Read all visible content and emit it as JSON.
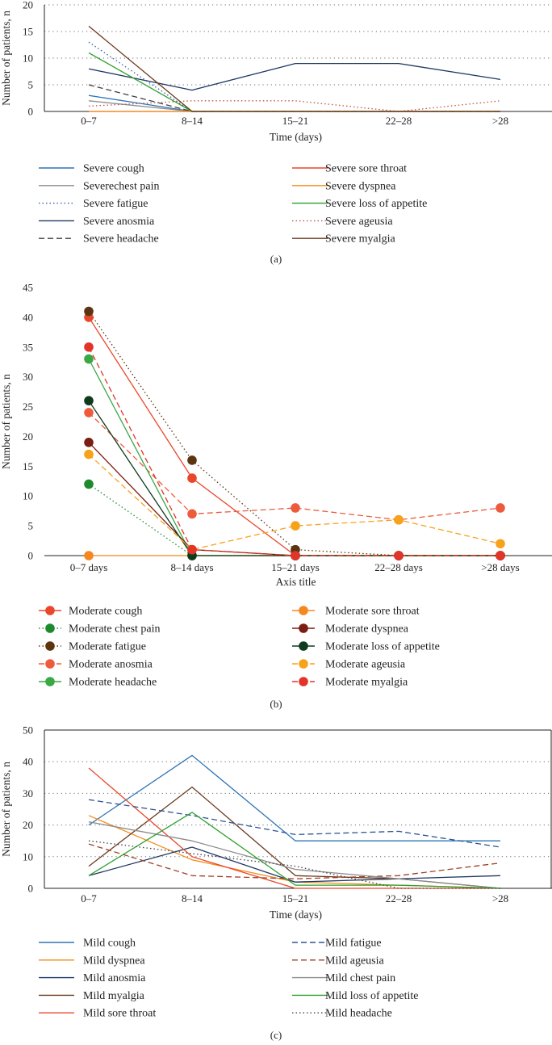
{
  "chart_data": [
    {
      "type": "line",
      "panel_label": "(a)",
      "title": "",
      "xlabel": "Time (days)",
      "ylabel": "Number of patients, n",
      "ylim": [
        0,
        20
      ],
      "yticks": [
        0,
        5,
        10,
        15,
        20
      ],
      "grid": "horizontal dotted",
      "categories": [
        "0–7",
        "8–14",
        "15–21",
        "22–28",
        ">28"
      ],
      "series": [
        {
          "name": "Severe cough",
          "color": "#2e75b6",
          "dash": "solid",
          "marker": "none",
          "values": [
            3,
            0,
            0,
            0,
            0
          ]
        },
        {
          "name": "Severechest pain",
          "color": "#8c8c8c",
          "dash": "solid",
          "marker": "none",
          "values": [
            2,
            0,
            0,
            0,
            0
          ]
        },
        {
          "name": "Severe fatigue",
          "color": "#3b5ea8",
          "dash": "dotted",
          "marker": "none",
          "values": [
            13,
            0,
            0,
            0,
            0
          ]
        },
        {
          "name": "Severe anosmia",
          "color": "#1f3864",
          "dash": "solid",
          "marker": "none",
          "values": [
            8,
            4,
            9,
            9,
            6
          ]
        },
        {
          "name": "Severe headache",
          "color": "#404040",
          "dash": "dashed",
          "marker": "none",
          "values": [
            5,
            0,
            0,
            0,
            0
          ]
        },
        {
          "name": "Severe sore throat",
          "color": "#e8472b",
          "dash": "solid",
          "marker": "none",
          "values": [
            0,
            0,
            0,
            0,
            0
          ]
        },
        {
          "name": "Severe dyspnea",
          "color": "#f28c18",
          "dash": "solid",
          "marker": "none",
          "values": [
            0,
            0,
            0,
            0,
            0
          ]
        },
        {
          "name": "Severe loss of appetite",
          "color": "#2ca02c",
          "dash": "solid",
          "marker": "none",
          "values": [
            11,
            0,
            0,
            0,
            0
          ]
        },
        {
          "name": "Severe ageusia",
          "color": "#c0504d",
          "dash": "dotted",
          "marker": "none",
          "values": [
            1,
            2,
            2,
            0,
            2
          ]
        },
        {
          "name": "Severe myalgia",
          "color": "#6b3a1f",
          "dash": "solid",
          "marker": "none",
          "values": [
            16,
            0,
            0,
            0,
            0
          ]
        }
      ]
    },
    {
      "type": "line",
      "panel_label": "(b)",
      "title": "",
      "xlabel": "Axis title",
      "ylabel": "Number of patients, n",
      "ylim": [
        0,
        45
      ],
      "yticks": [
        0,
        5,
        10,
        15,
        20,
        25,
        30,
        35,
        40,
        45
      ],
      "grid": "none",
      "categories": [
        "0–7 days",
        "8–14 days",
        "15–21 days",
        "22–28 days",
        ">28 days"
      ],
      "series": [
        {
          "name": "Moderate cough",
          "color": "#e8472b",
          "dash": "solid",
          "marker": "circle",
          "values": [
            40,
            13,
            0,
            0,
            0
          ]
        },
        {
          "name": "Moderate chest pain",
          "color": "#1e8a2e",
          "dash": "dotted",
          "marker": "circle",
          "values": [
            12,
            0,
            0,
            0,
            0
          ]
        },
        {
          "name": "Moderate fatigue",
          "color": "#5c3510",
          "dash": "dotted",
          "marker": "circle",
          "values": [
            41,
            16,
            1,
            0,
            0
          ]
        },
        {
          "name": "Moderate anosmia",
          "color": "#ee5a3c",
          "dash": "dashed",
          "marker": "circle",
          "values": [
            24,
            7,
            8,
            6,
            8
          ]
        },
        {
          "name": "Moderate headache",
          "color": "#39a845",
          "dash": "solid",
          "marker": "circle",
          "values": [
            33,
            0,
            0,
            0,
            0
          ]
        },
        {
          "name": "Moderate sore throat",
          "color": "#f5871f",
          "dash": "solid",
          "marker": "circle",
          "values": [
            0,
            0,
            0,
            0,
            0
          ]
        },
        {
          "name": "Moderate dyspnea",
          "color": "#7a1d12",
          "dash": "solid",
          "marker": "circle",
          "values": [
            19,
            1,
            0,
            0,
            0
          ]
        },
        {
          "name": "Moderate loss of appetite",
          "color": "#0e3b1e",
          "dash": "solid",
          "marker": "circle",
          "values": [
            26,
            0,
            0,
            0,
            0
          ]
        },
        {
          "name": "Moderate ageusia",
          "color": "#f7a21b",
          "dash": "dashed",
          "marker": "circle",
          "values": [
            17,
            1,
            5,
            6,
            2
          ]
        },
        {
          "name": "Moderate myalgia",
          "color": "#e3342a",
          "dash": "dashed",
          "marker": "circle",
          "values": [
            35,
            1,
            0,
            0,
            0
          ]
        }
      ]
    },
    {
      "type": "line",
      "panel_label": "(c)",
      "title": "",
      "xlabel": "Time (days)",
      "ylabel": "Number of patients, n",
      "ylim": [
        0,
        50
      ],
      "yticks": [
        0,
        10,
        20,
        30,
        40,
        50
      ],
      "grid": "horizontal dotted",
      "categories": [
        "0–7",
        "8–14",
        "15–21",
        "22–28",
        ">28"
      ],
      "series": [
        {
          "name": "Mild cough",
          "color": "#2e75b6",
          "dash": "solid",
          "marker": "none",
          "values": [
            20,
            42,
            15,
            15,
            15
          ]
        },
        {
          "name": "Mild dyspnea",
          "color": "#f28c18",
          "dash": "solid",
          "marker": "none",
          "values": [
            23,
            9,
            2,
            1,
            0
          ]
        },
        {
          "name": "Mild anosmia",
          "color": "#1f3864",
          "dash": "solid",
          "marker": "none",
          "values": [
            4,
            13,
            2,
            3,
            4
          ]
        },
        {
          "name": "Mild myalgia",
          "color": "#6b3a1f",
          "dash": "solid",
          "marker": "none",
          "values": [
            7,
            32,
            4,
            3,
            0
          ]
        },
        {
          "name": "Mild sore throat",
          "color": "#e8472b",
          "dash": "solid",
          "marker": "none",
          "values": [
            38,
            10,
            0,
            0,
            0
          ]
        },
        {
          "name": "Mild fatigue",
          "color": "#2f5597",
          "dash": "dashed",
          "marker": "none",
          "values": [
            28,
            23,
            17,
            18,
            13
          ]
        },
        {
          "name": "Mild ageusia",
          "color": "#a0402a",
          "dash": "dashed",
          "marker": "none",
          "values": [
            14,
            4,
            3,
            4,
            8
          ]
        },
        {
          "name": "Mild chest pain",
          "color": "#8c8c8c",
          "dash": "solid",
          "marker": "none",
          "values": [
            21,
            15,
            6,
            3,
            0
          ]
        },
        {
          "name": "Mild loss of appetite",
          "color": "#2ca02c",
          "dash": "solid",
          "marker": "none",
          "values": [
            4,
            24,
            1,
            1,
            0
          ]
        },
        {
          "name": "Mild headache",
          "color": "#404040",
          "dash": "dotted",
          "marker": "none",
          "values": [
            15,
            11,
            7,
            0,
            0
          ]
        }
      ]
    }
  ]
}
